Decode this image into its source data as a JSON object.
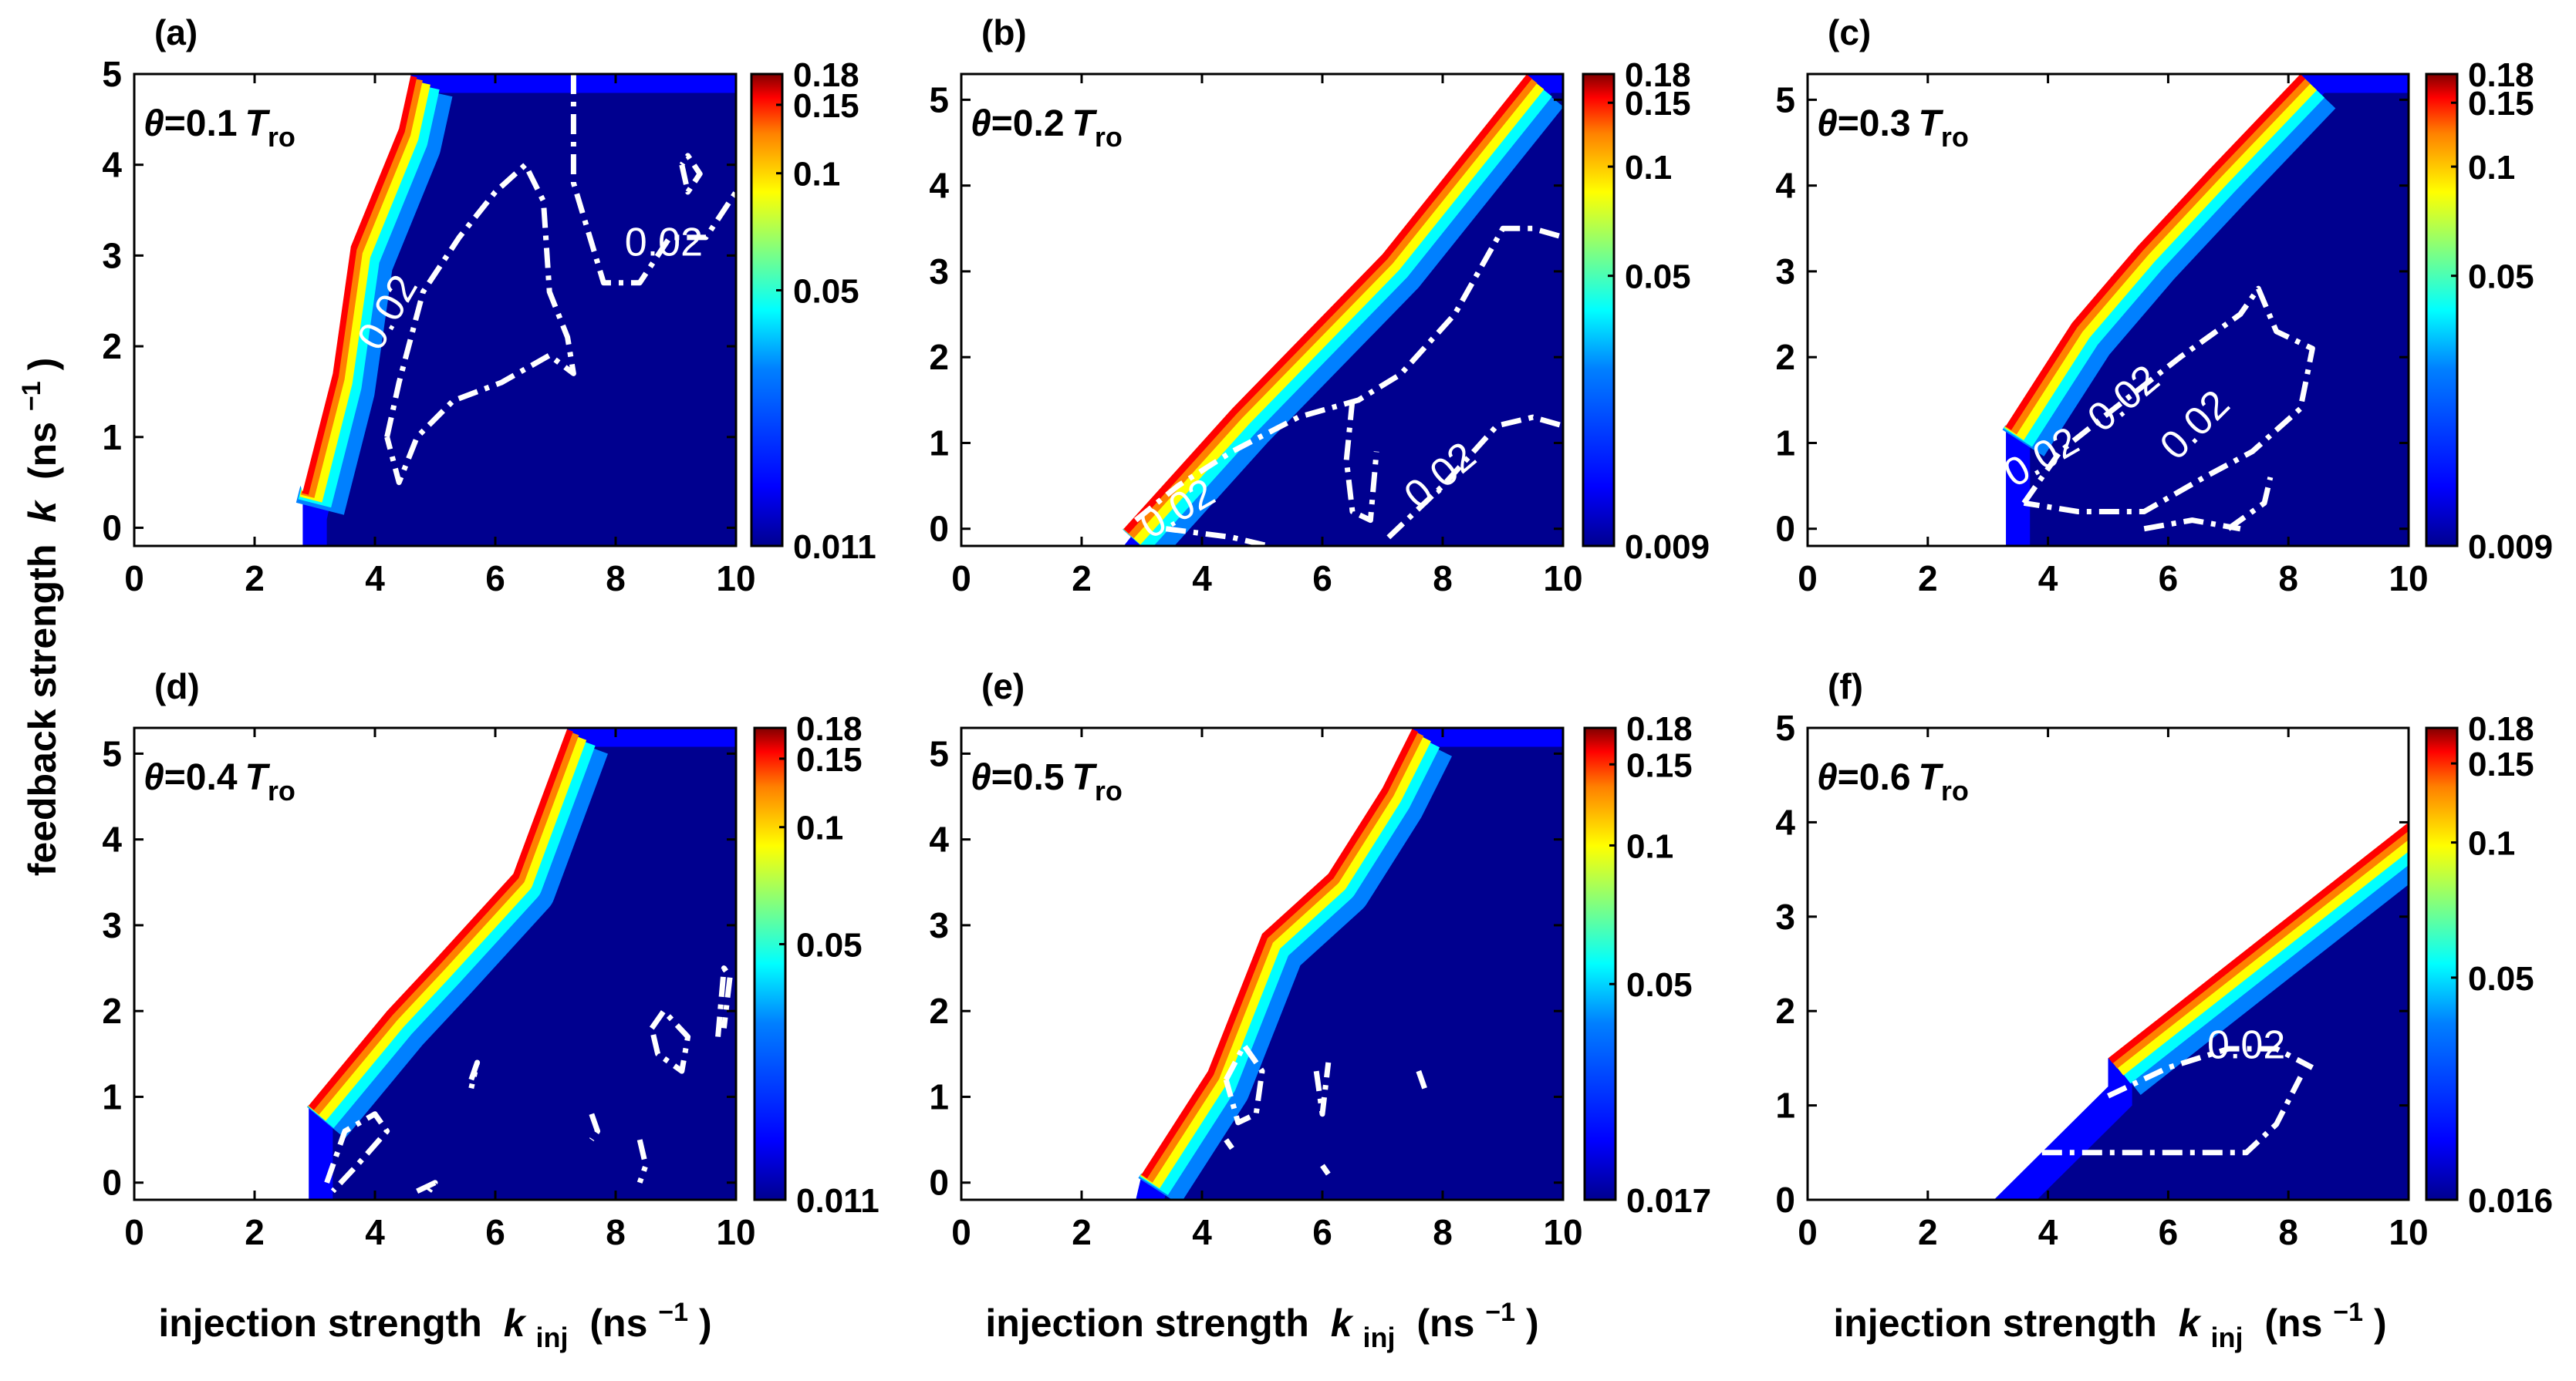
{
  "figure": {
    "ylabel_main": "feedback strength",
    "ylabel_sym": "k",
    "ylabel_unit_open": "(ns",
    "ylabel_unit_exp": "−1",
    "ylabel_unit_close": ")",
    "xlabel_main": "injection strength",
    "xlabel_sym": "k",
    "xlabel_sub": "inj",
    "xlabel_unit_open": "(ns",
    "xlabel_unit_exp": "−1",
    "xlabel_unit_close": ")",
    "param_prefix": "θ=",
    "param_unit_sym": "T",
    "param_unit_sub": "ro"
  },
  "colors": {
    "jet": [
      "#00008f",
      "#0000ff",
      "#0080ff",
      "#00ffff",
      "#80ff80",
      "#ffff00",
      "#ff8000",
      "#ff0000",
      "#800000"
    ],
    "contour": "#ffffff",
    "axis": "#000000",
    "background": "#ffffff"
  },
  "chart_data": [
    {
      "type": "heatmap",
      "panel": "(a)",
      "theta_value": "0.1",
      "xlim": [
        0,
        10
      ],
      "ylim": [
        -0.2,
        5
      ],
      "xticks": [
        "0",
        "2",
        "4",
        "6",
        "8",
        "10"
      ],
      "yticks": [
        "0",
        "1",
        "2",
        "3",
        "4",
        "5"
      ],
      "colorbar_range": [
        0.011,
        0.18
      ],
      "colorbar_ticks": [
        {
          "v": 0.18,
          "label": "0.18"
        },
        {
          "v": 0.15,
          "label": "0.15"
        },
        {
          "v": 0.1,
          "label": "0.1"
        },
        {
          "v": 0.05,
          "label": "0.05"
        },
        {
          "v": 0.011,
          "label": "0.011"
        }
      ],
      "region": [
        [
          2.8,
          0.3
        ],
        [
          3.2,
          1.5
        ],
        [
          3.5,
          3.0
        ],
        [
          4.4,
          4.4
        ],
        [
          4.6,
          5.0
        ],
        [
          10,
          5.0
        ],
        [
          10,
          -0.2
        ],
        [
          2.8,
          -0.2
        ]
      ],
      "edge_band": [
        [
          2.8,
          0.4
        ],
        [
          3.3,
          1.7
        ],
        [
          3.6,
          3.1
        ],
        [
          4.4,
          4.4
        ],
        [
          4.6,
          5.0
        ]
      ],
      "contour_level": "0.02",
      "contours": [
        [
          [
            4.2,
            1.0
          ],
          [
            4.4,
            1.6
          ],
          [
            4.8,
            2.6
          ],
          [
            5.4,
            3.2
          ],
          [
            6.0,
            3.7
          ],
          [
            6.5,
            4.0
          ],
          [
            6.8,
            3.6
          ],
          [
            6.9,
            2.6
          ],
          [
            7.2,
            2.1
          ],
          [
            7.3,
            1.7
          ],
          [
            6.9,
            1.9
          ],
          [
            6.1,
            1.6
          ],
          [
            5.3,
            1.4
          ],
          [
            4.7,
            1.0
          ],
          [
            4.4,
            0.5
          ],
          [
            4.2,
            1.0
          ]
        ],
        [
          [
            7.3,
            5.0
          ],
          [
            7.3,
            3.8
          ],
          [
            7.8,
            2.7
          ],
          [
            8.4,
            2.7
          ],
          [
            8.9,
            3.2
          ],
          [
            9.5,
            3.2
          ],
          [
            10.0,
            3.7
          ]
        ],
        [
          [
            9.1,
            4.0
          ],
          [
            9.2,
            3.7
          ],
          [
            9.4,
            3.9
          ],
          [
            9.2,
            4.1
          ],
          [
            9.1,
            4.0
          ]
        ]
      ],
      "contour_labels": [
        {
          "x": 4.4,
          "y": 2.3,
          "text": "0.02",
          "angle": -60
        },
        {
          "x": 8.8,
          "y": 3.0,
          "text": "0.02",
          "angle": 0
        }
      ]
    },
    {
      "type": "heatmap",
      "panel": "(b)",
      "theta_value": "0.2",
      "xlim": [
        0,
        10
      ],
      "ylim": [
        -0.2,
        5.3
      ],
      "xticks": [
        "0",
        "2",
        "4",
        "6",
        "8",
        "10"
      ],
      "yticks": [
        "0",
        "1",
        "2",
        "3",
        "4",
        "5"
      ],
      "colorbar_range": [
        0.009,
        0.18
      ],
      "colorbar_ticks": [
        {
          "v": 0.18,
          "label": "0.18"
        },
        {
          "v": 0.15,
          "label": "0.15"
        },
        {
          "v": 0.1,
          "label": "0.1"
        },
        {
          "v": 0.05,
          "label": "0.05"
        },
        {
          "v": 0.009,
          "label": "0.009"
        }
      ],
      "region": [
        [
          2.7,
          -0.2
        ],
        [
          4.5,
          1.4
        ],
        [
          7.0,
          3.2
        ],
        [
          9.4,
          5.3
        ],
        [
          10,
          5.3
        ],
        [
          10,
          -0.2
        ]
      ],
      "edge_band": [
        [
          2.7,
          0.0
        ],
        [
          4.5,
          1.4
        ],
        [
          7.0,
          3.2
        ],
        [
          9.4,
          5.3
        ]
      ],
      "contour_level": "0.02",
      "contours": [
        [
          [
            2.9,
            0.1
          ],
          [
            3.6,
            0.5
          ],
          [
            4.5,
            0.9
          ],
          [
            5.6,
            1.3
          ],
          [
            6.6,
            1.5
          ],
          [
            7.3,
            1.8
          ],
          [
            8.2,
            2.5
          ],
          [
            9.0,
            3.5
          ],
          [
            9.5,
            3.5
          ],
          [
            10.0,
            3.4
          ]
        ],
        [
          [
            3.4,
            0.0
          ],
          [
            4.5,
            -0.1
          ],
          [
            5.1,
            -0.2
          ]
        ],
        [
          [
            6.5,
            1.5
          ],
          [
            6.4,
            0.8
          ],
          [
            6.5,
            0.2
          ],
          [
            6.8,
            0.1
          ],
          [
            6.9,
            0.9
          ]
        ],
        [
          [
            7.1,
            -0.1
          ],
          [
            8.0,
            0.5
          ],
          [
            8.9,
            1.2
          ],
          [
            9.5,
            1.3
          ],
          [
            10.0,
            1.2
          ]
        ]
      ],
      "contour_labels": [
        {
          "x": 3.7,
          "y": 0.1,
          "text": "0.02",
          "angle": -30
        },
        {
          "x": 8.1,
          "y": 0.5,
          "text": "0.02",
          "angle": -40
        }
      ]
    },
    {
      "type": "heatmap",
      "panel": "(c)",
      "theta_value": "0.3",
      "xlim": [
        0,
        10
      ],
      "ylim": [
        -0.2,
        5.3
      ],
      "xticks": [
        "0",
        "2",
        "4",
        "6",
        "8",
        "10"
      ],
      "yticks": [
        "0",
        "1",
        "2",
        "3",
        "4",
        "5"
      ],
      "colorbar_range": [
        0.009,
        0.18
      ],
      "colorbar_ticks": [
        {
          "v": 0.18,
          "label": "0.18"
        },
        {
          "v": 0.15,
          "label": "0.15"
        },
        {
          "v": 0.1,
          "label": "0.1"
        },
        {
          "v": 0.05,
          "label": "0.05"
        },
        {
          "v": 0.009,
          "label": "0.009"
        }
      ],
      "region": [
        [
          3.3,
          -0.2
        ],
        [
          3.3,
          1.2
        ],
        [
          4.4,
          2.4
        ],
        [
          5.5,
          3.3
        ],
        [
          6.7,
          4.2
        ],
        [
          8.2,
          5.3
        ],
        [
          10,
          5.3
        ],
        [
          10,
          -0.2
        ]
      ],
      "edge_band": [
        [
          3.3,
          1.2
        ],
        [
          4.4,
          2.4
        ],
        [
          5.5,
          3.3
        ],
        [
          6.7,
          4.2
        ],
        [
          8.2,
          5.3
        ]
      ],
      "contour_level": "0.02",
      "contours": [
        [
          [
            3.6,
            0.3
          ],
          [
            4.2,
            0.9
          ],
          [
            5.1,
            1.4
          ],
          [
            6.2,
            2.0
          ],
          [
            7.2,
            2.5
          ],
          [
            7.5,
            2.8
          ],
          [
            7.8,
            2.3
          ],
          [
            8.4,
            2.1
          ],
          [
            8.2,
            1.4
          ],
          [
            7.4,
            0.9
          ],
          [
            6.6,
            0.6
          ],
          [
            5.6,
            0.2
          ],
          [
            4.5,
            0.2
          ],
          [
            3.6,
            0.3
          ]
        ],
        [
          [
            5.6,
            0.0
          ],
          [
            6.4,
            0.1
          ],
          [
            7.2,
            0.0
          ]
        ],
        [
          [
            7.0,
            0.0
          ],
          [
            7.6,
            0.3
          ],
          [
            7.7,
            0.6
          ]
        ]
      ],
      "contour_labels": [
        {
          "x": 4.0,
          "y": 0.7,
          "text": "0.02",
          "angle": -30
        },
        {
          "x": 5.4,
          "y": 1.4,
          "text": "0.02",
          "angle": -40
        },
        {
          "x": 6.6,
          "y": 1.1,
          "text": "0.02",
          "angle": -45
        }
      ]
    },
    {
      "type": "heatmap",
      "panel": "(d)",
      "theta_value": "0.4",
      "xlim": [
        0,
        10
      ],
      "ylim": [
        -0.2,
        5.3
      ],
      "xticks": [
        "0",
        "2",
        "4",
        "6",
        "8",
        "10"
      ],
      "yticks": [
        "0",
        "1",
        "2",
        "3",
        "4",
        "5"
      ],
      "colorbar_range": [
        0.011,
        0.18
      ],
      "colorbar_ticks": [
        {
          "v": 0.18,
          "label": "0.18"
        },
        {
          "v": 0.15,
          "label": "0.15"
        },
        {
          "v": 0.1,
          "label": "0.1"
        },
        {
          "v": 0.05,
          "label": "0.05"
        },
        {
          "v": 0.011,
          "label": "0.011"
        }
      ],
      "region": [
        [
          2.9,
          -0.2
        ],
        [
          2.9,
          0.9
        ],
        [
          4.2,
          2.0
        ],
        [
          5.0,
          2.6
        ],
        [
          6.3,
          3.6
        ],
        [
          7.2,
          5.3
        ],
        [
          10,
          5.3
        ],
        [
          10,
          -0.2
        ]
      ],
      "edge_band": [
        [
          2.9,
          0.9
        ],
        [
          4.2,
          2.0
        ],
        [
          5.0,
          2.6
        ],
        [
          6.3,
          3.6
        ],
        [
          7.2,
          5.3
        ]
      ],
      "contour_level": "0.02",
      "contours": [
        [
          [
            3.2,
            0.0
          ],
          [
            3.5,
            0.6
          ],
          [
            4.0,
            0.8
          ],
          [
            4.2,
            0.6
          ],
          [
            3.7,
            0.2
          ],
          [
            3.3,
            -0.1
          ]
        ],
        [
          [
            8.6,
            1.8
          ],
          [
            8.8,
            2.0
          ],
          [
            9.2,
            1.7
          ],
          [
            9.1,
            1.3
          ],
          [
            8.7,
            1.5
          ],
          [
            8.6,
            1.8
          ]
        ],
        [
          [
            9.7,
            1.7
          ],
          [
            9.8,
            2.5
          ],
          [
            9.9,
            2.4
          ],
          [
            9.8,
            1.8
          ]
        ],
        [
          [
            5.6,
            1.2
          ],
          [
            5.7,
            1.4
          ],
          [
            5.6,
            1.1
          ]
        ],
        [
          [
            7.6,
            0.8
          ],
          [
            7.7,
            0.6
          ],
          [
            7.6,
            0.5
          ]
        ],
        [
          [
            8.4,
            0.5
          ],
          [
            8.5,
            0.2
          ],
          [
            8.4,
            0.0
          ]
        ],
        [
          [
            4.7,
            -0.1
          ],
          [
            5.0,
            0.0
          ],
          [
            4.9,
            -0.1
          ]
        ]
      ],
      "contour_labels": []
    },
    {
      "type": "heatmap",
      "panel": "(e)",
      "theta_value": "0.5",
      "xlim": [
        0,
        10
      ],
      "ylim": [
        -0.2,
        5.3
      ],
      "xticks": [
        "0",
        "2",
        "4",
        "6",
        "8",
        "10"
      ],
      "yticks": [
        "0",
        "1",
        "2",
        "3",
        "4",
        "5"
      ],
      "colorbar_range": [
        0.017,
        0.18
      ],
      "colorbar_ticks": [
        {
          "v": 0.18,
          "label": "0.18"
        },
        {
          "v": 0.15,
          "label": "0.15"
        },
        {
          "v": 0.1,
          "label": "0.1"
        },
        {
          "v": 0.05,
          "label": "0.05"
        },
        {
          "v": 0.017,
          "label": "0.017"
        }
      ],
      "region": [
        [
          2.9,
          -0.2
        ],
        [
          3.0,
          0.1
        ],
        [
          4.1,
          1.3
        ],
        [
          5.0,
          2.9
        ],
        [
          6.1,
          3.6
        ],
        [
          7.0,
          4.6
        ],
        [
          7.5,
          5.3
        ],
        [
          10,
          5.3
        ],
        [
          10,
          -0.2
        ]
      ],
      "edge_band": [
        [
          3.0,
          0.1
        ],
        [
          4.1,
          1.3
        ],
        [
          5.0,
          2.9
        ],
        [
          6.1,
          3.6
        ],
        [
          7.0,
          4.6
        ],
        [
          7.5,
          5.3
        ]
      ],
      "contour_level": "0.02",
      "contours": [
        [
          [
            4.4,
            1.2
          ],
          [
            4.7,
            1.6
          ],
          [
            5.0,
            1.3
          ],
          [
            4.9,
            0.8
          ],
          [
            4.6,
            0.7
          ],
          [
            4.4,
            1.2
          ]
        ],
        [
          [
            5.9,
            1.3
          ],
          [
            6.0,
            0.8
          ],
          [
            6.1,
            1.4
          ]
        ],
        [
          [
            7.6,
            1.3
          ],
          [
            7.7,
            1.1
          ]
        ],
        [
          [
            4.4,
            0.5
          ],
          [
            4.5,
            0.4
          ]
        ],
        [
          [
            6.0,
            0.2
          ],
          [
            6.1,
            0.1
          ]
        ]
      ],
      "contour_labels": []
    },
    {
      "type": "heatmap",
      "panel": "(f)",
      "theta_value": "0.6",
      "xlim": [
        0,
        10
      ],
      "ylim": [
        0,
        5
      ],
      "xticks": [
        "0",
        "2",
        "4",
        "6",
        "8",
        "10"
      ],
      "yticks": [
        "0",
        "1",
        "2",
        "3",
        "4",
        "5"
      ],
      "colorbar_range": [
        0.016,
        0.18
      ],
      "colorbar_ticks": [
        {
          "v": 0.18,
          "label": "0.18"
        },
        {
          "v": 0.15,
          "label": "0.15"
        },
        {
          "v": 0.1,
          "label": "0.1"
        },
        {
          "v": 0.05,
          "label": "0.05"
        },
        {
          "v": 0.016,
          "label": "0.016"
        }
      ],
      "region": [
        [
          3.1,
          0.0
        ],
        [
          5.0,
          1.2
        ],
        [
          5.0,
          1.5
        ],
        [
          10,
          4.0
        ],
        [
          10,
          0.0
        ]
      ],
      "edge_band": [
        [
          5.0,
          1.5
        ],
        [
          10,
          4.0
        ]
      ],
      "contour_level": "0.02",
      "contours": [
        [
          [
            5.0,
            1.1
          ],
          [
            6.0,
            1.4
          ],
          [
            7.0,
            1.6
          ],
          [
            7.8,
            1.6
          ],
          [
            8.4,
            1.4
          ]
        ],
        [
          [
            3.9,
            0.5
          ],
          [
            5.3,
            0.5
          ],
          [
            6.5,
            0.5
          ],
          [
            7.3,
            0.5
          ],
          [
            7.8,
            0.8
          ],
          [
            8.2,
            1.3
          ]
        ]
      ],
      "contour_labels": [
        {
          "x": 7.3,
          "y": 1.5,
          "text": "0.02",
          "angle": 0
        }
      ]
    }
  ]
}
